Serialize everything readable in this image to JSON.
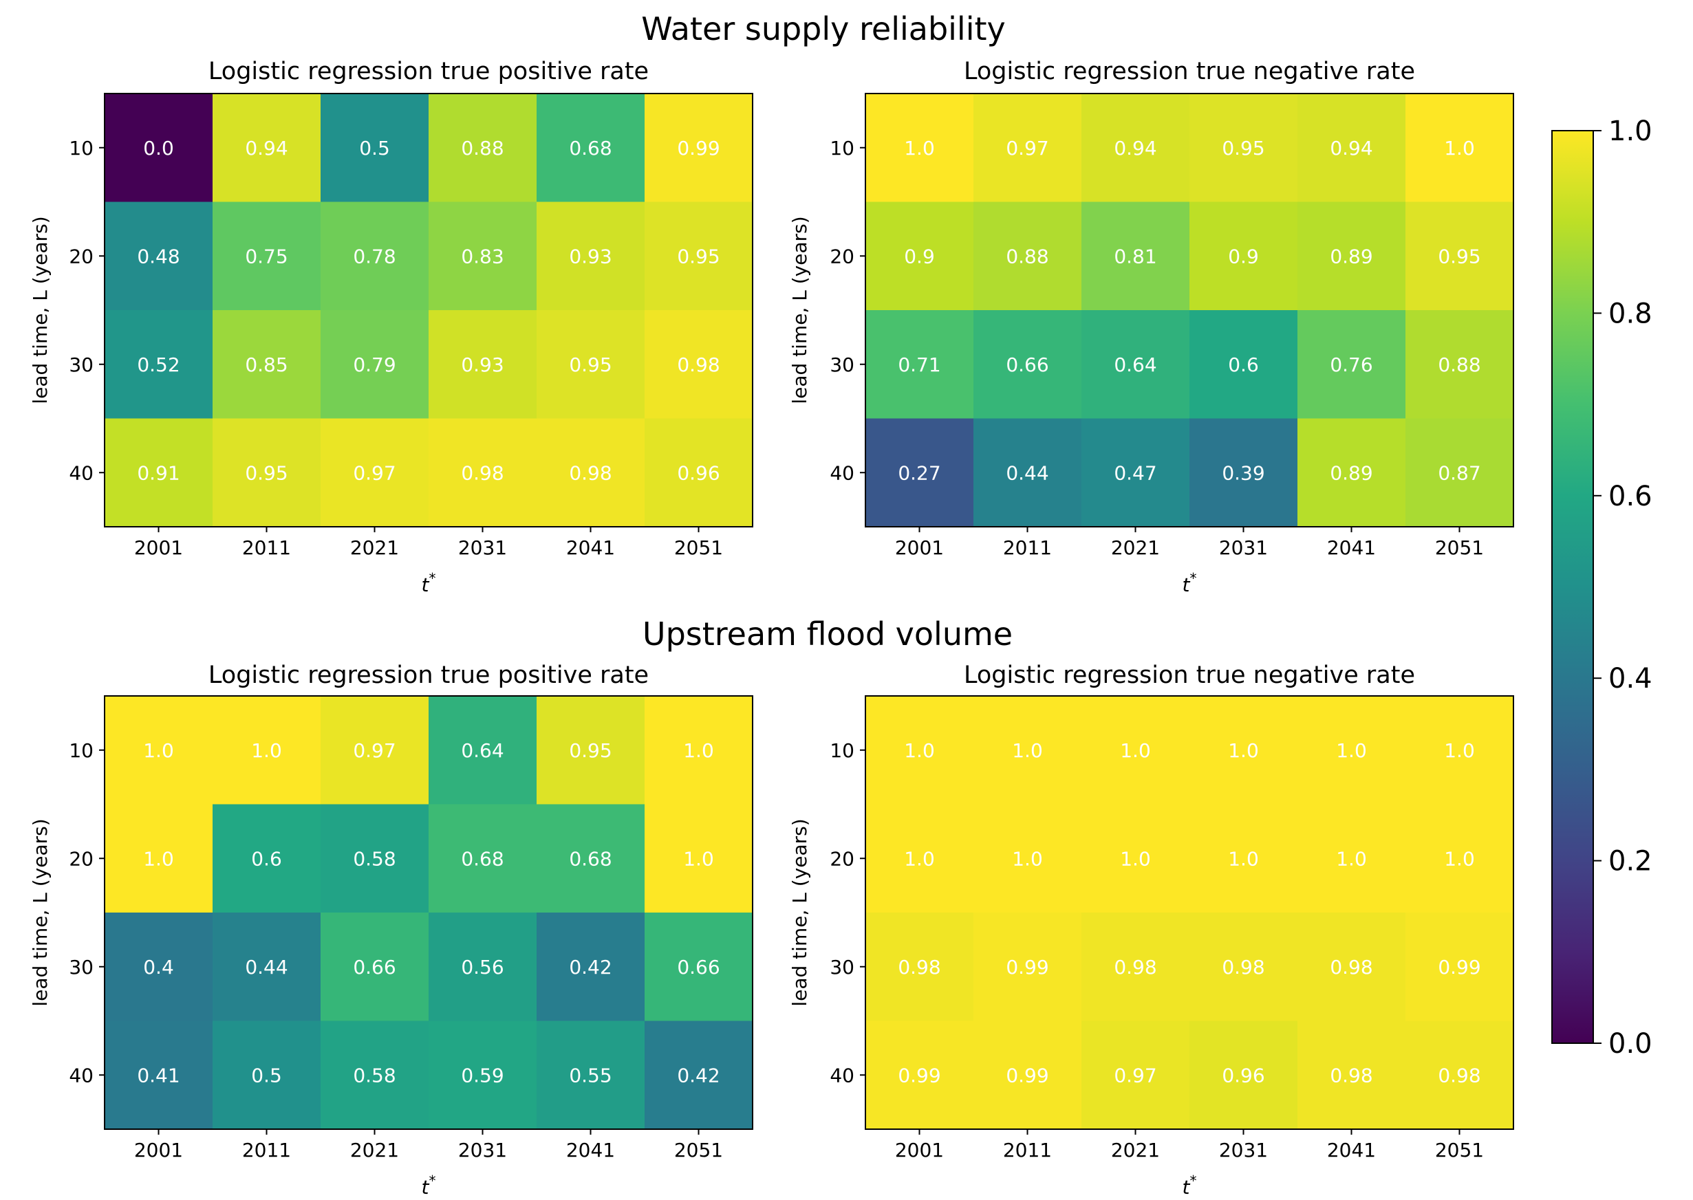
{
  "figure": {
    "sections": [
      {
        "title": "Water supply reliability"
      },
      {
        "title": "Upstream flood volume"
      }
    ],
    "colorbar": {
      "ticks": [
        "0.0",
        "0.2",
        "0.4",
        "0.6",
        "0.8",
        "1.0"
      ],
      "range": [
        0,
        1
      ],
      "colormap": "viridis"
    }
  },
  "chart_data": [
    {
      "type": "heatmap",
      "section": "Water supply reliability",
      "title": "Logistic regression true positive rate",
      "xlabel": "t*",
      "ylabel": "lead time, L (years)",
      "x": [
        "2001",
        "2011",
        "2021",
        "2031",
        "2041",
        "2051"
      ],
      "y": [
        "10",
        "20",
        "30",
        "40"
      ],
      "values": [
        [
          0.0,
          0.94,
          0.5,
          0.88,
          0.68,
          0.99
        ],
        [
          0.48,
          0.75,
          0.78,
          0.83,
          0.93,
          0.95
        ],
        [
          0.52,
          0.85,
          0.79,
          0.93,
          0.95,
          0.98
        ],
        [
          0.91,
          0.95,
          0.97,
          0.98,
          0.98,
          0.96
        ]
      ]
    },
    {
      "type": "heatmap",
      "section": "Water supply reliability",
      "title": "Logistic regression true negative rate",
      "xlabel": "t*",
      "ylabel": "lead time, L (years)",
      "x": [
        "2001",
        "2011",
        "2021",
        "2031",
        "2041",
        "2051"
      ],
      "y": [
        "10",
        "20",
        "30",
        "40"
      ],
      "values": [
        [
          1.0,
          0.97,
          0.94,
          0.95,
          0.94,
          1.0
        ],
        [
          0.9,
          0.88,
          0.81,
          0.9,
          0.89,
          0.95
        ],
        [
          0.71,
          0.66,
          0.64,
          0.6,
          0.76,
          0.88
        ],
        [
          0.27,
          0.44,
          0.47,
          0.39,
          0.89,
          0.87
        ]
      ]
    },
    {
      "type": "heatmap",
      "section": "Upstream flood volume",
      "title": "Logistic regression true positive rate",
      "xlabel": "t*",
      "ylabel": "lead time, L (years)",
      "x": [
        "2001",
        "2011",
        "2021",
        "2031",
        "2041",
        "2051"
      ],
      "y": [
        "10",
        "20",
        "30",
        "40"
      ],
      "values": [
        [
          1.0,
          1.0,
          0.97,
          0.64,
          0.95,
          1.0
        ],
        [
          1.0,
          0.6,
          0.58,
          0.68,
          0.68,
          1.0
        ],
        [
          0.4,
          0.44,
          0.66,
          0.56,
          0.42,
          0.66
        ],
        [
          0.41,
          0.5,
          0.58,
          0.59,
          0.55,
          0.42
        ]
      ]
    },
    {
      "type": "heatmap",
      "section": "Upstream flood volume",
      "title": "Logistic regression true negative rate",
      "xlabel": "t*",
      "ylabel": "lead time, L (years)",
      "x": [
        "2001",
        "2011",
        "2021",
        "2031",
        "2041",
        "2051"
      ],
      "y": [
        "10",
        "20",
        "30",
        "40"
      ],
      "values": [
        [
          1.0,
          1.0,
          1.0,
          1.0,
          1.0,
          1.0
        ],
        [
          1.0,
          1.0,
          1.0,
          1.0,
          1.0,
          1.0
        ],
        [
          0.98,
          0.99,
          0.98,
          0.98,
          0.98,
          0.99
        ],
        [
          0.99,
          0.99,
          0.97,
          0.96,
          0.98,
          0.98
        ]
      ]
    }
  ]
}
